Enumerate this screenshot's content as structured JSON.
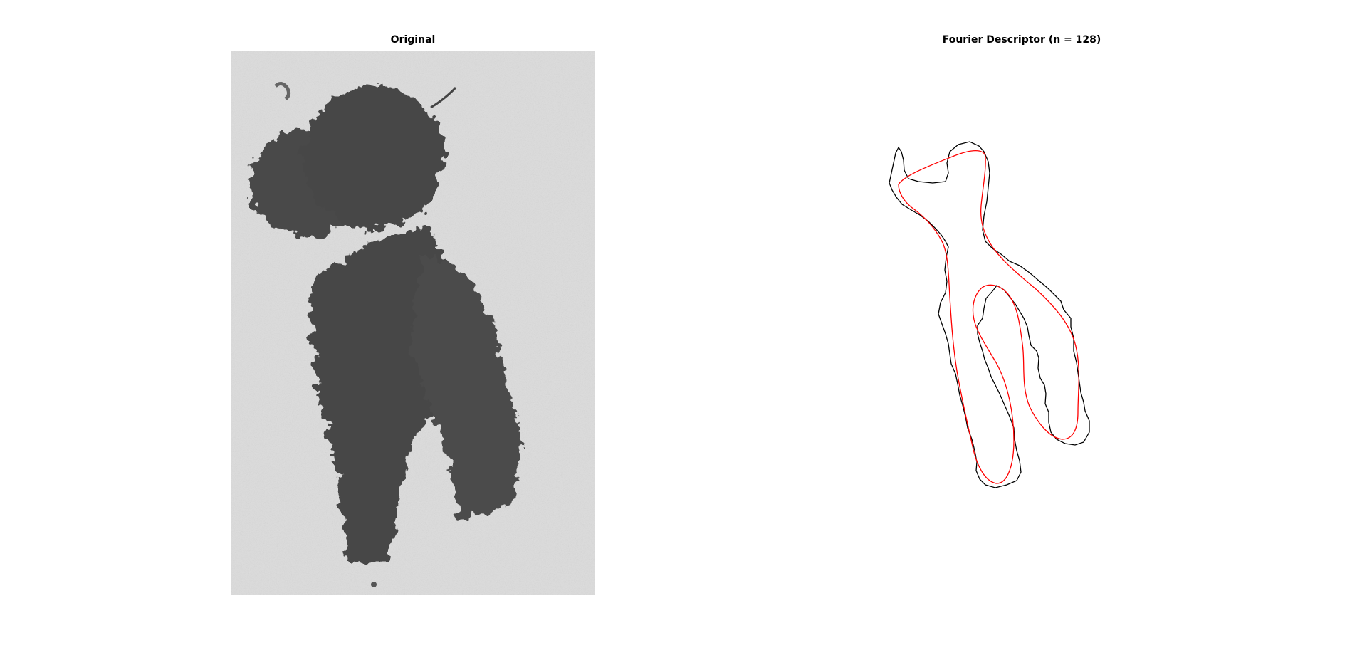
{
  "figure": {
    "left_panel": {
      "title": "Original"
    },
    "right_panel": {
      "title": "Fourier Descriptor (n = 128)",
      "series_colors": {
        "boundary": "#000000",
        "reconstruction": "#ff0000"
      }
    }
  }
}
